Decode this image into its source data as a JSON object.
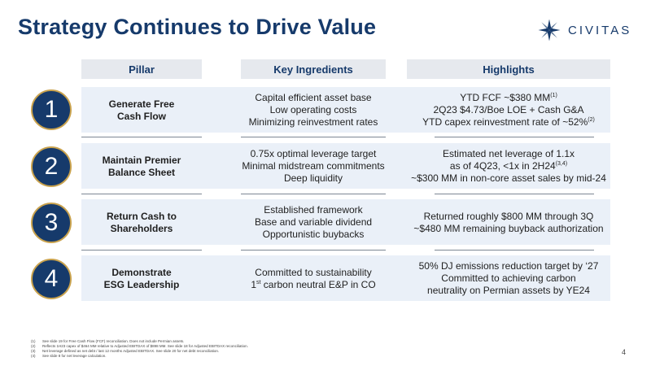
{
  "title": "Strategy Continues to Drive Value",
  "logo": {
    "text": "CIVITAS",
    "icon": "civitas-star-icon",
    "brand_color": "#163a6b",
    "accent_color": "#c9a24d"
  },
  "headers": {
    "pillar": "Pillar",
    "ingredients": "Key Ingredients",
    "highlights": "Highlights"
  },
  "rows": [
    {
      "number": "1",
      "pillar": [
        "Generate Free",
        "Cash Flow"
      ],
      "ingredients": [
        "Capital efficient asset base",
        "Low operating costs",
        "Minimizing reinvestment rates"
      ],
      "highlights": {
        "line1": "YTD FCF ~$380 MM",
        "line1_sup": "(1)",
        "line2": "2Q23 $4.73/Boe LOE + Cash G&A",
        "line3": "YTD capex reinvestment rate of ~52%",
        "line3_sup": "(2)"
      }
    },
    {
      "number": "2",
      "pillar": [
        "Maintain Premier",
        "Balance Sheet"
      ],
      "ingredients": [
        "0.75x optimal leverage target",
        "Minimal midstream commitments",
        "Deep liquidity"
      ],
      "highlights": {
        "line1": "Estimated net leverage of 1.1x",
        "line2": "as of 4Q23, <1x in 2H24",
        "line2_sup": "(3,4)",
        "line3": "~$300 MM in non-core asset sales by mid-24"
      }
    },
    {
      "number": "3",
      "pillar": [
        "Return Cash to",
        "Shareholders"
      ],
      "ingredients": [
        "Established framework",
        "Base and variable dividend",
        "Opportunistic buybacks"
      ],
      "highlights": {
        "line1": "Returned roughly $800 MM through 3Q",
        "line2": "~$480 MM remaining buyback authorization"
      }
    },
    {
      "number": "4",
      "pillar": [
        "Demonstrate",
        "ESG Leadership"
      ],
      "ingredients": {
        "line1": "Committed to sustainability",
        "line2_pre": "1",
        "line2_sup": "st",
        "line2_post": " carbon neutral E&P in CO"
      },
      "highlights": {
        "line1": "50% DJ emissions reduction target by ‘27",
        "line2": "Committed to achieving carbon",
        "line3": "neutrality on Permian assets by YE24"
      }
    }
  ],
  "footnotes": [
    {
      "num": "(1)",
      "text": "See slide 19 for Free Cash Flow (FCF) reconciliation. Does not include Permian assets."
    },
    {
      "num": "(2)",
      "text": "Reflects 1H23 capex of $464 MM relative to Adjusted EBITDAX of $898 MM. See slide 18 for Adjusted EBITDAX reconciliation."
    },
    {
      "num": "(3)",
      "text": "Net leverage defined as net debt / last 12 months Adjusted EBITDAX. See slide 20 for net debt reconciliation."
    },
    {
      "num": "(4)",
      "text": "See slide 8 for net leverage calculation."
    }
  ],
  "page_number": "4"
}
